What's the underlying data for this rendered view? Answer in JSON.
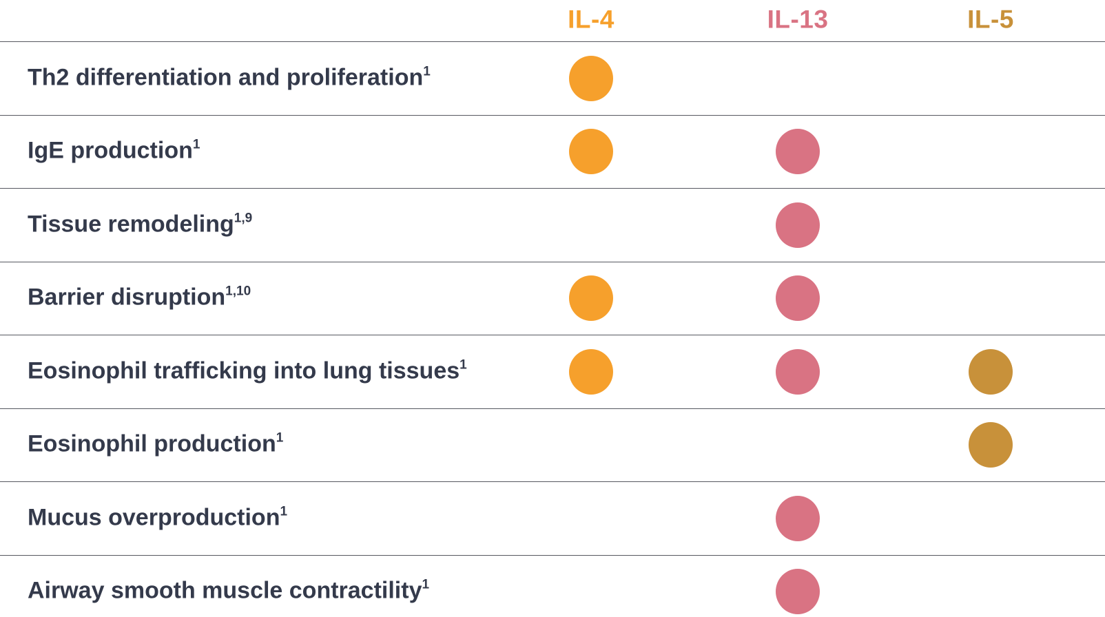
{
  "chart_data": {
    "type": "table",
    "title": "",
    "columns": [
      {
        "id": "il4",
        "label": "IL-4",
        "color": "#F6A02C"
      },
      {
        "id": "il13",
        "label": "IL-13",
        "color": "#D97383"
      },
      {
        "id": "il5",
        "label": "IL-5",
        "color": "#C8913A"
      }
    ],
    "rows": [
      {
        "label": "Th2 differentiation and proliferation",
        "superscript": "1",
        "markers": [
          "il4"
        ]
      },
      {
        "label": "IgE production",
        "superscript": "1",
        "markers": [
          "il4",
          "il13"
        ]
      },
      {
        "label": "Tissue remodeling",
        "superscript": "1,9",
        "markers": [
          "il13"
        ]
      },
      {
        "label": "Barrier disruption",
        "superscript": "1,10",
        "markers": [
          "il4",
          "il13"
        ]
      },
      {
        "label": "Eosinophil trafficking into lung tissues",
        "superscript": "1",
        "markers": [
          "il4",
          "il13",
          "il5"
        ]
      },
      {
        "label": "Eosinophil production",
        "superscript": "1",
        "markers": [
          "il5"
        ]
      },
      {
        "label": "Mucus overproduction",
        "superscript": "1",
        "markers": [
          "il13"
        ]
      },
      {
        "label": "Airway smooth muscle contractility",
        "superscript": "1",
        "markers": [
          "il13"
        ]
      }
    ],
    "legend_position": "top",
    "grid": "horizontal-lines"
  },
  "colors": {
    "row_label_text": "#343A4B",
    "grid_line": "#55575F",
    "background": "#FFFFFF"
  }
}
